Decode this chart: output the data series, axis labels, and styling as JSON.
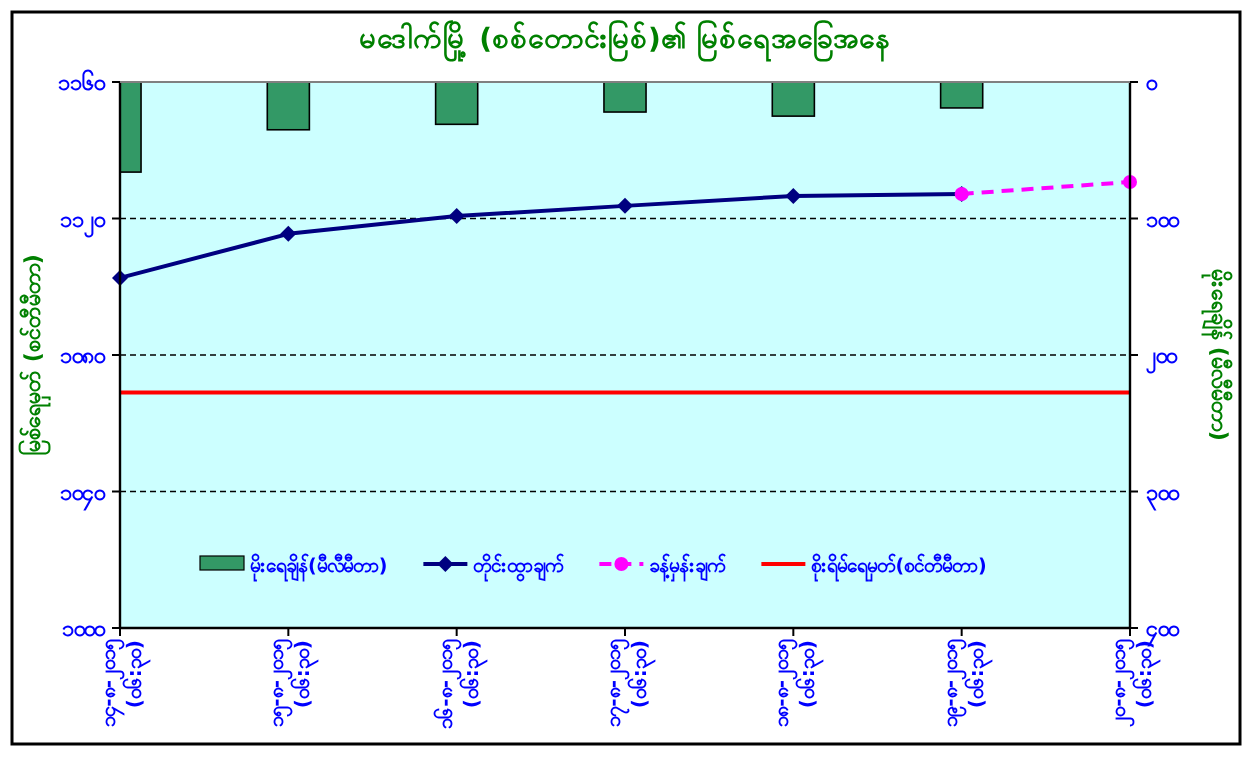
{
  "chart_data": {
    "type": "line",
    "title": "မဒေါက်မြို့ (စစ်တောင်းမြစ်)၏ မြစ်ရေအခြေအနေ",
    "ylabel": "မြစ်ရေမှတ် (စင်တီမီတာ)",
    "y2label": "မိုးရေချိန် (မီလီမီတာ)",
    "categories": [
      "၁၄-၈-၂၀၁၅\n(၀၆:၃၀)",
      "၁၅-၈-၂၀၁၅\n(၀၆:၃၀)",
      "၁၆-၈-၂၀၁၅\n(၀၆:၃၀)",
      "၁၇-၈-၂၀၁၅\n(၀၆:၃၀)",
      "၁၈-၈-၂၀၁၅\n(၀၆:၃၀)",
      "၁၉-၈-၂၀၁၅\n(၀၆:၃၀)",
      "၂၀-၈-၂၀၁၅\n(၀၆:၃၀)"
    ],
    "series": [
      {
        "name": "မိုးရေချိန်(မီလီမီတာ)",
        "type": "bar",
        "axis": "y2",
        "color": "#339966",
        "values": [
          66,
          35,
          31,
          22,
          25,
          19,
          null
        ]
      },
      {
        "name": "တိုင်းထွာချက်",
        "color": "#000080",
        "marker": "diamond",
        "line_style": "solid",
        "values": [
          1102.6,
          1115.5,
          1120.7,
          1123.7,
          1126.6,
          1127.2,
          null
        ]
      },
      {
        "name": "ခန့်မှန်းချက်",
        "color": "#ff00ff",
        "marker": "circle",
        "line_style": "dashed",
        "values": [
          null,
          null,
          null,
          null,
          null,
          1127.2,
          1130.7
        ]
      }
    ],
    "ref_lines": [
      {
        "axis": "y",
        "value": 1069,
        "label": "စိုးရိမ်ရေမှတ်(စင်တီမီတာ)",
        "color": "#ff0000",
        "line_style": "solid"
      }
    ],
    "ylim": [
      1000,
      1160
    ],
    "yticks": [
      {
        "value": 1000,
        "label": "၁၀၀၀"
      },
      {
        "value": 1040,
        "label": "၁၀၄၀"
      },
      {
        "value": 1080,
        "label": "၁၀၈၀"
      },
      {
        "value": 1120,
        "label": "၁၁၂၀"
      },
      {
        "value": 1160,
        "label": "၁၁၆၀"
      }
    ],
    "y2lim": [
      400,
      0
    ],
    "y2ticks": [
      {
        "value": 0,
        "label": "၀"
      },
      {
        "value": 100,
        "label": "၁၀၀"
      },
      {
        "value": 200,
        "label": "၂၀၀"
      },
      {
        "value": 300,
        "label": "၃၀၀"
      },
      {
        "value": 400,
        "label": "၄၀၀"
      }
    ],
    "grid": "y",
    "legend": "bottom"
  }
}
